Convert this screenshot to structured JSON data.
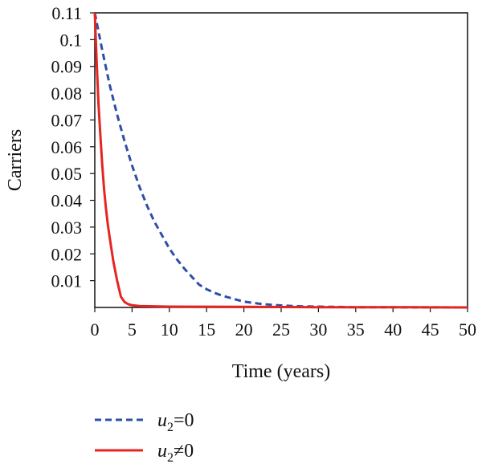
{
  "chart_data": {
    "type": "line",
    "xlabel": "Time (years)",
    "ylabel": "Carriers",
    "xlim": [
      0,
      50
    ],
    "ylim": [
      0,
      0.11
    ],
    "xticks": [
      "0",
      "5",
      "10",
      "15",
      "20",
      "25",
      "30",
      "35",
      "40",
      "45",
      "50"
    ],
    "yticks": [
      "0.01",
      "0.02",
      "0.03",
      "0.04",
      "0.05",
      "0.06",
      "0.07",
      "0.08",
      "0.09",
      "0.1",
      "0.11"
    ],
    "grid": false,
    "legend_position": "bottom-left",
    "series": [
      {
        "name": "u2=0",
        "legend": {
          "var": "u",
          "sub": "2",
          "rel": "=0"
        },
        "color": "#2e4fa8",
        "style": "dashed",
        "x": [
          0,
          1,
          2,
          3,
          4,
          5,
          6,
          7,
          8,
          9,
          10,
          11,
          12,
          13,
          14,
          15,
          16,
          17,
          18,
          19,
          20,
          22,
          24,
          26,
          28,
          30,
          32,
          35,
          40,
          45,
          50
        ],
        "y": [
          0.11,
          0.096,
          0.083,
          0.072,
          0.062,
          0.053,
          0.045,
          0.038,
          0.032,
          0.027,
          0.022,
          0.018,
          0.0145,
          0.0115,
          0.0085,
          0.0068,
          0.0055,
          0.0045,
          0.0037,
          0.0029,
          0.0022,
          0.0014,
          0.0009,
          0.0006,
          0.0004,
          0.0003,
          0.0002,
          0.0001,
          5e-05,
          2e-05,
          0.0
        ]
      },
      {
        "name": "u2≠0",
        "legend": {
          "var": "u",
          "sub": "2",
          "rel": "≠0"
        },
        "color": "#e52521",
        "style": "solid",
        "x": [
          0,
          0.25,
          0.5,
          0.75,
          1,
          1.25,
          1.5,
          1.75,
          2,
          2.5,
          3,
          3.5,
          4,
          4.5,
          5,
          6,
          10,
          20,
          30,
          40,
          50
        ],
        "y": [
          0.11,
          0.092,
          0.076,
          0.064,
          0.053,
          0.044,
          0.037,
          0.031,
          0.026,
          0.017,
          0.01,
          0.004,
          0.002,
          0.0012,
          0.0008,
          0.0005,
          0.0003,
          0.0002,
          0.0001,
          0.0001,
          0.0
        ]
      }
    ]
  }
}
